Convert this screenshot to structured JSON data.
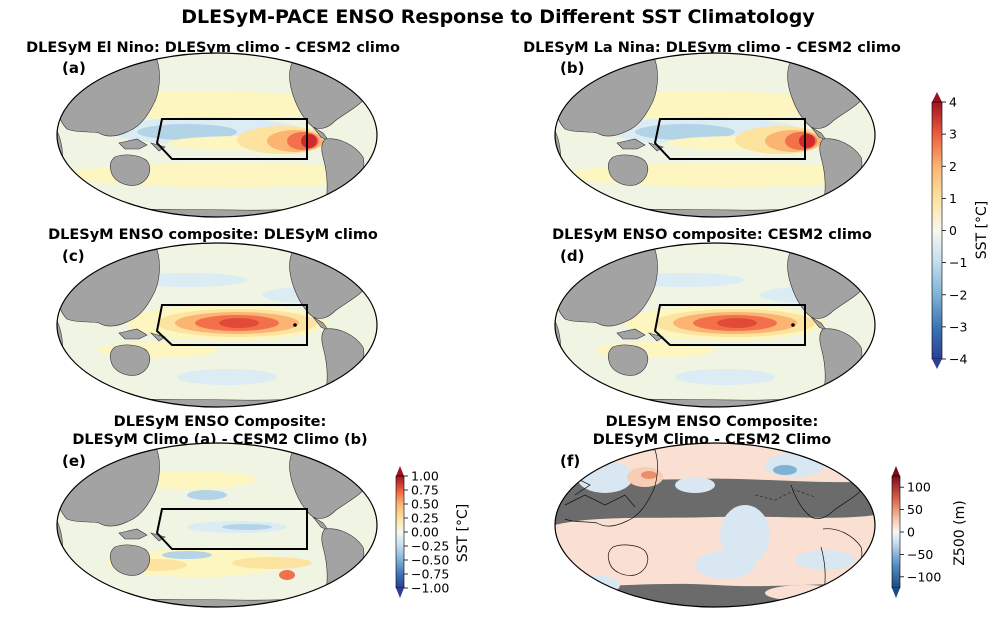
{
  "figure_title": "DLESyM-PACE ENSO Response to Different SST Climatology",
  "colors": {
    "ocean_base": "#f0f4e2",
    "land": "#a3a3a3",
    "land_dark_panel": "#6b6b6b",
    "warm1": "#fdf6c0",
    "warm2": "#fde3a0",
    "warm3": "#fbb472",
    "warm4": "#f2704a",
    "warm5": "#cf2a2d",
    "warm6": "#9b1020",
    "cool1": "#dcecf5",
    "cool2": "#b3d4e7",
    "cool3": "#7fb2d4",
    "z500_pos": "#fae0d3",
    "z500_neg": "#d9e7f3"
  },
  "chart_data": [
    {
      "id": "a",
      "type": "heatmap",
      "panel_label": "(a)",
      "title_lines": [
        "DLESyM El Nino: DLESym climo - CESM2 climo"
      ],
      "variable": "SST anomaly difference",
      "units": "°C",
      "shared_colorbar": "main"
    },
    {
      "id": "b",
      "type": "heatmap",
      "panel_label": "(b)",
      "title_lines": [
        "DLESyM La Nina: DLESym climo - CESM2 climo"
      ],
      "variable": "SST anomaly difference",
      "units": "°C",
      "shared_colorbar": "main"
    },
    {
      "id": "c",
      "type": "heatmap",
      "panel_label": "(c)",
      "title_lines": [
        "DLESyM ENSO composite: DLESyM climo"
      ],
      "variable": "SST composite",
      "units": "°C",
      "shared_colorbar": "main"
    },
    {
      "id": "d",
      "type": "heatmap",
      "panel_label": "(d)",
      "title_lines": [
        "DLESyM ENSO composite: CESM2 climo"
      ],
      "variable": "SST composite",
      "units": "°C",
      "shared_colorbar": "main"
    },
    {
      "id": "e",
      "type": "heatmap",
      "panel_label": "(e)",
      "title_lines": [
        "DLESyM ENSO Composite:",
        "DLESyM Climo (a) - CESM2 Climo (b)"
      ],
      "variable": "SST composite difference",
      "units": "°C",
      "shared_colorbar": "small_sst"
    },
    {
      "id": "f",
      "type": "heatmap",
      "panel_label": "(f)",
      "title_lines": [
        "DLESyM ENSO Composite:",
        "DLESyM Climo - CESM2 Climo"
      ],
      "variable": "Z500 difference",
      "units": "m",
      "shared_colorbar": "z500"
    }
  ],
  "colorbars": {
    "main": {
      "label": "SST [°C]",
      "range": [
        -4,
        4
      ],
      "ticks": [
        "4",
        "3",
        "2",
        "1",
        "0",
        "−1",
        "−2",
        "−3",
        "−4"
      ],
      "tick_values": [
        4,
        3,
        2,
        1,
        0,
        -1,
        -2,
        -3,
        -4
      ],
      "extend": "both"
    },
    "small_sst": {
      "label": "SST [°C]",
      "range": [
        -1,
        1
      ],
      "ticks": [
        "1.00",
        "0.75",
        "0.50",
        "0.25",
        "0.00",
        "−0.25",
        "−0.50",
        "−0.75",
        "−1.00"
      ],
      "tick_values": [
        1,
        0.75,
        0.5,
        0.25,
        0,
        -0.25,
        -0.5,
        -0.75,
        -1
      ],
      "extend": "both"
    },
    "z500": {
      "label": "Z500 (m)",
      "range": [
        -125,
        125
      ],
      "ticks": [
        "100",
        "50",
        "0",
        "−50",
        "−100"
      ],
      "tick_values": [
        100,
        50,
        0,
        -50,
        -100
      ],
      "extend": "both"
    }
  }
}
